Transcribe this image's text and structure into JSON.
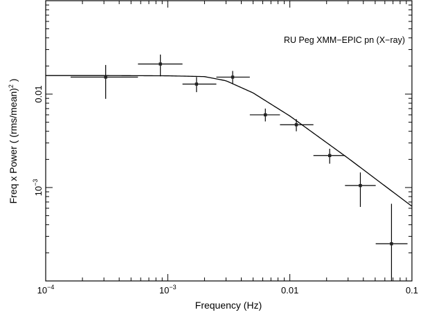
{
  "chart_data": {
    "type": "scatter",
    "annotation": "RU Peg XMM−EPIC pn (X−ray)",
    "xlabel": "Frequency (Hz)",
    "ylabel_main": "Freq x Power ( (rms/mean)",
    "ylabel_sup": "2",
    "ylabel_end": " )",
    "x_scale": "log",
    "y_scale": "log",
    "xlim": [
      0.0001,
      0.1
    ],
    "ylim": [
      0.0001,
      0.1
    ],
    "x_ticks": [
      {
        "value": 0.0001,
        "base": "10",
        "exp": "−4"
      },
      {
        "value": 0.001,
        "base": "10",
        "exp": "−3"
      },
      {
        "value": 0.01,
        "base": "0.01",
        "exp": ""
      },
      {
        "value": 0.1,
        "base": "0.1",
        "exp": ""
      }
    ],
    "y_ticks": [
      {
        "value": 0.001,
        "base": "10",
        "exp": "−3"
      },
      {
        "value": 0.01,
        "base": "0.01",
        "exp": ""
      }
    ],
    "grid": false,
    "legend": "none",
    "series": [
      {
        "points": [
          {
            "x": 0.00031,
            "x_lo": 0.00016,
            "x_hi": 0.00057,
            "y": 0.0152,
            "y_lo": 0.0089,
            "y_hi": 0.0205
          },
          {
            "x": 0.00087,
            "x_lo": 0.00057,
            "x_hi": 0.00132,
            "y": 0.021,
            "y_lo": 0.0155,
            "y_hi": 0.0265
          },
          {
            "x": 0.00172,
            "x_lo": 0.00132,
            "x_hi": 0.0025,
            "y": 0.0128,
            "y_lo": 0.0105,
            "y_hi": 0.0152
          },
          {
            "x": 0.0034,
            "x_lo": 0.0025,
            "x_hi": 0.0047,
            "y": 0.0152,
            "y_lo": 0.013,
            "y_hi": 0.0177
          },
          {
            "x": 0.0063,
            "x_lo": 0.0047,
            "x_hi": 0.0083,
            "y": 0.006,
            "y_lo": 0.0051,
            "y_hi": 0.007
          },
          {
            "x": 0.0113,
            "x_lo": 0.0083,
            "x_hi": 0.0156,
            "y": 0.0047,
            "y_lo": 0.004,
            "y_hi": 0.0054
          },
          {
            "x": 0.0212,
            "x_lo": 0.0156,
            "x_hi": 0.0283,
            "y": 0.0022,
            "y_lo": 0.0018,
            "y_hi": 0.0026
          },
          {
            "x": 0.0378,
            "x_lo": 0.0283,
            "x_hi": 0.0505,
            "y": 0.00105,
            "y_lo": 0.00062,
            "y_hi": 0.00145
          },
          {
            "x": 0.068,
            "x_lo": 0.0505,
            "x_hi": 0.092,
            "y": 0.00025,
            "y_lo": 0.0001,
            "y_hi": 0.00067
          }
        ]
      }
    ],
    "model": {
      "form": "flat-top power law",
      "x": [
        0.0001,
        0.0003,
        0.001,
        0.002,
        0.003,
        0.005,
        0.01,
        0.03,
        0.1
      ],
      "y": [
        0.0158,
        0.0158,
        0.0157,
        0.0154,
        0.0139,
        0.0103,
        0.00583,
        0.00206,
        0.00063
      ]
    }
  }
}
